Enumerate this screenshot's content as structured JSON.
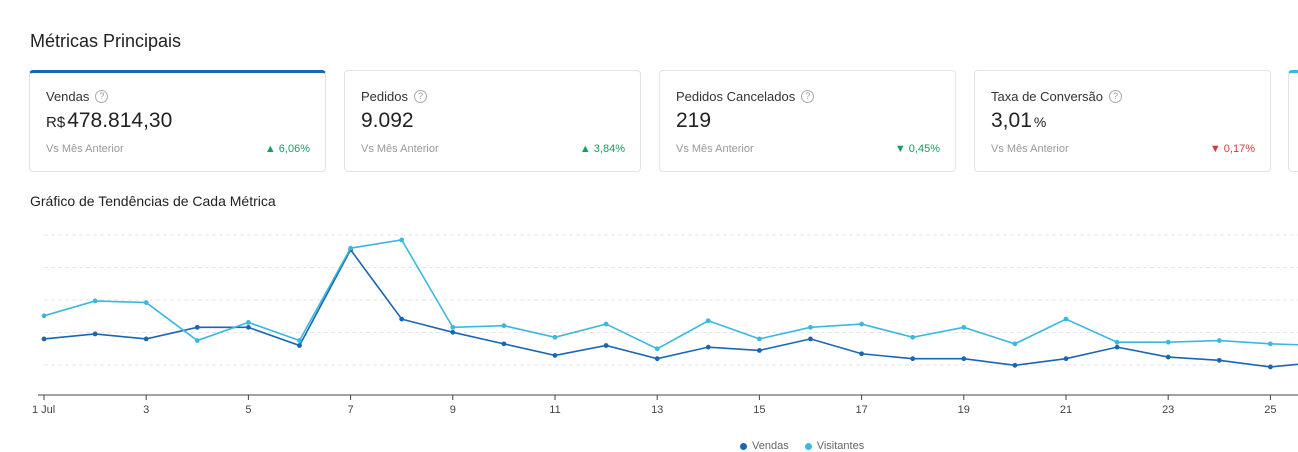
{
  "page": {
    "title": "Métricas Principais"
  },
  "cards": [
    {
      "label": "Vendas",
      "currency": "R$",
      "value": "478.814,30",
      "unit": "",
      "compare": "Vs Mês Anterior",
      "change": "6,06%",
      "direction": "up",
      "arrow": "▲"
    },
    {
      "label": "Pedidos",
      "currency": "",
      "value": "9.092",
      "unit": "",
      "compare": "Vs Mês Anterior",
      "change": "3,84%",
      "direction": "up",
      "arrow": "▲"
    },
    {
      "label": "Pedidos Cancelados",
      "currency": "",
      "value": "219",
      "unit": "",
      "compare": "Vs Mês Anterior",
      "change": "0,45%",
      "direction": "up",
      "arrow": "▼"
    },
    {
      "label": "Taxa de Conversão",
      "currency": "",
      "value": "3,01",
      "unit": "%",
      "compare": "Vs Mês Anterior",
      "change": "0,17%",
      "direction": "down",
      "arrow": "▼"
    }
  ],
  "icons": {
    "help": "question-circle-icon"
  },
  "colors": {
    "vendas": "#1a66b4",
    "visitantes": "#3cb8e0",
    "up": "#17a05d",
    "down": "#d43c3c",
    "active_border": "#1a66b4"
  },
  "chart_data": {
    "type": "line",
    "title": "Gráfico de Tendências de Cada Métrica",
    "xlabel": "",
    "ylabel": "",
    "x": [
      "1 Jul",
      "2",
      "3",
      "4",
      "5",
      "6",
      "7",
      "8",
      "9",
      "10",
      "11",
      "12",
      "13",
      "14",
      "15",
      "16",
      "17",
      "18",
      "19",
      "20",
      "21",
      "22",
      "23",
      "24",
      "25",
      "26"
    ],
    "tick_labels": [
      "1 Jul",
      "3",
      "5",
      "7",
      "9",
      "11",
      "13",
      "15",
      "17",
      "19",
      "21",
      "23",
      "25"
    ],
    "ylim": [
      0,
      100
    ],
    "grid": true,
    "legend": "bottom-center",
    "series": [
      {
        "name": "Vendas",
        "values": [
          34,
          37,
          34,
          41,
          41,
          30,
          88,
          46,
          38,
          31,
          24,
          30,
          22,
          29,
          27,
          34,
          25,
          22,
          22,
          18,
          22,
          29,
          23,
          21,
          17,
          20
        ]
      },
      {
        "name": "Visitantes",
        "values": [
          48,
          57,
          56,
          33,
          44,
          33,
          89,
          94,
          41,
          42,
          35,
          43,
          28,
          45,
          34,
          41,
          43,
          35,
          41,
          31,
          46,
          32,
          32,
          33,
          31,
          30
        ]
      }
    ]
  }
}
